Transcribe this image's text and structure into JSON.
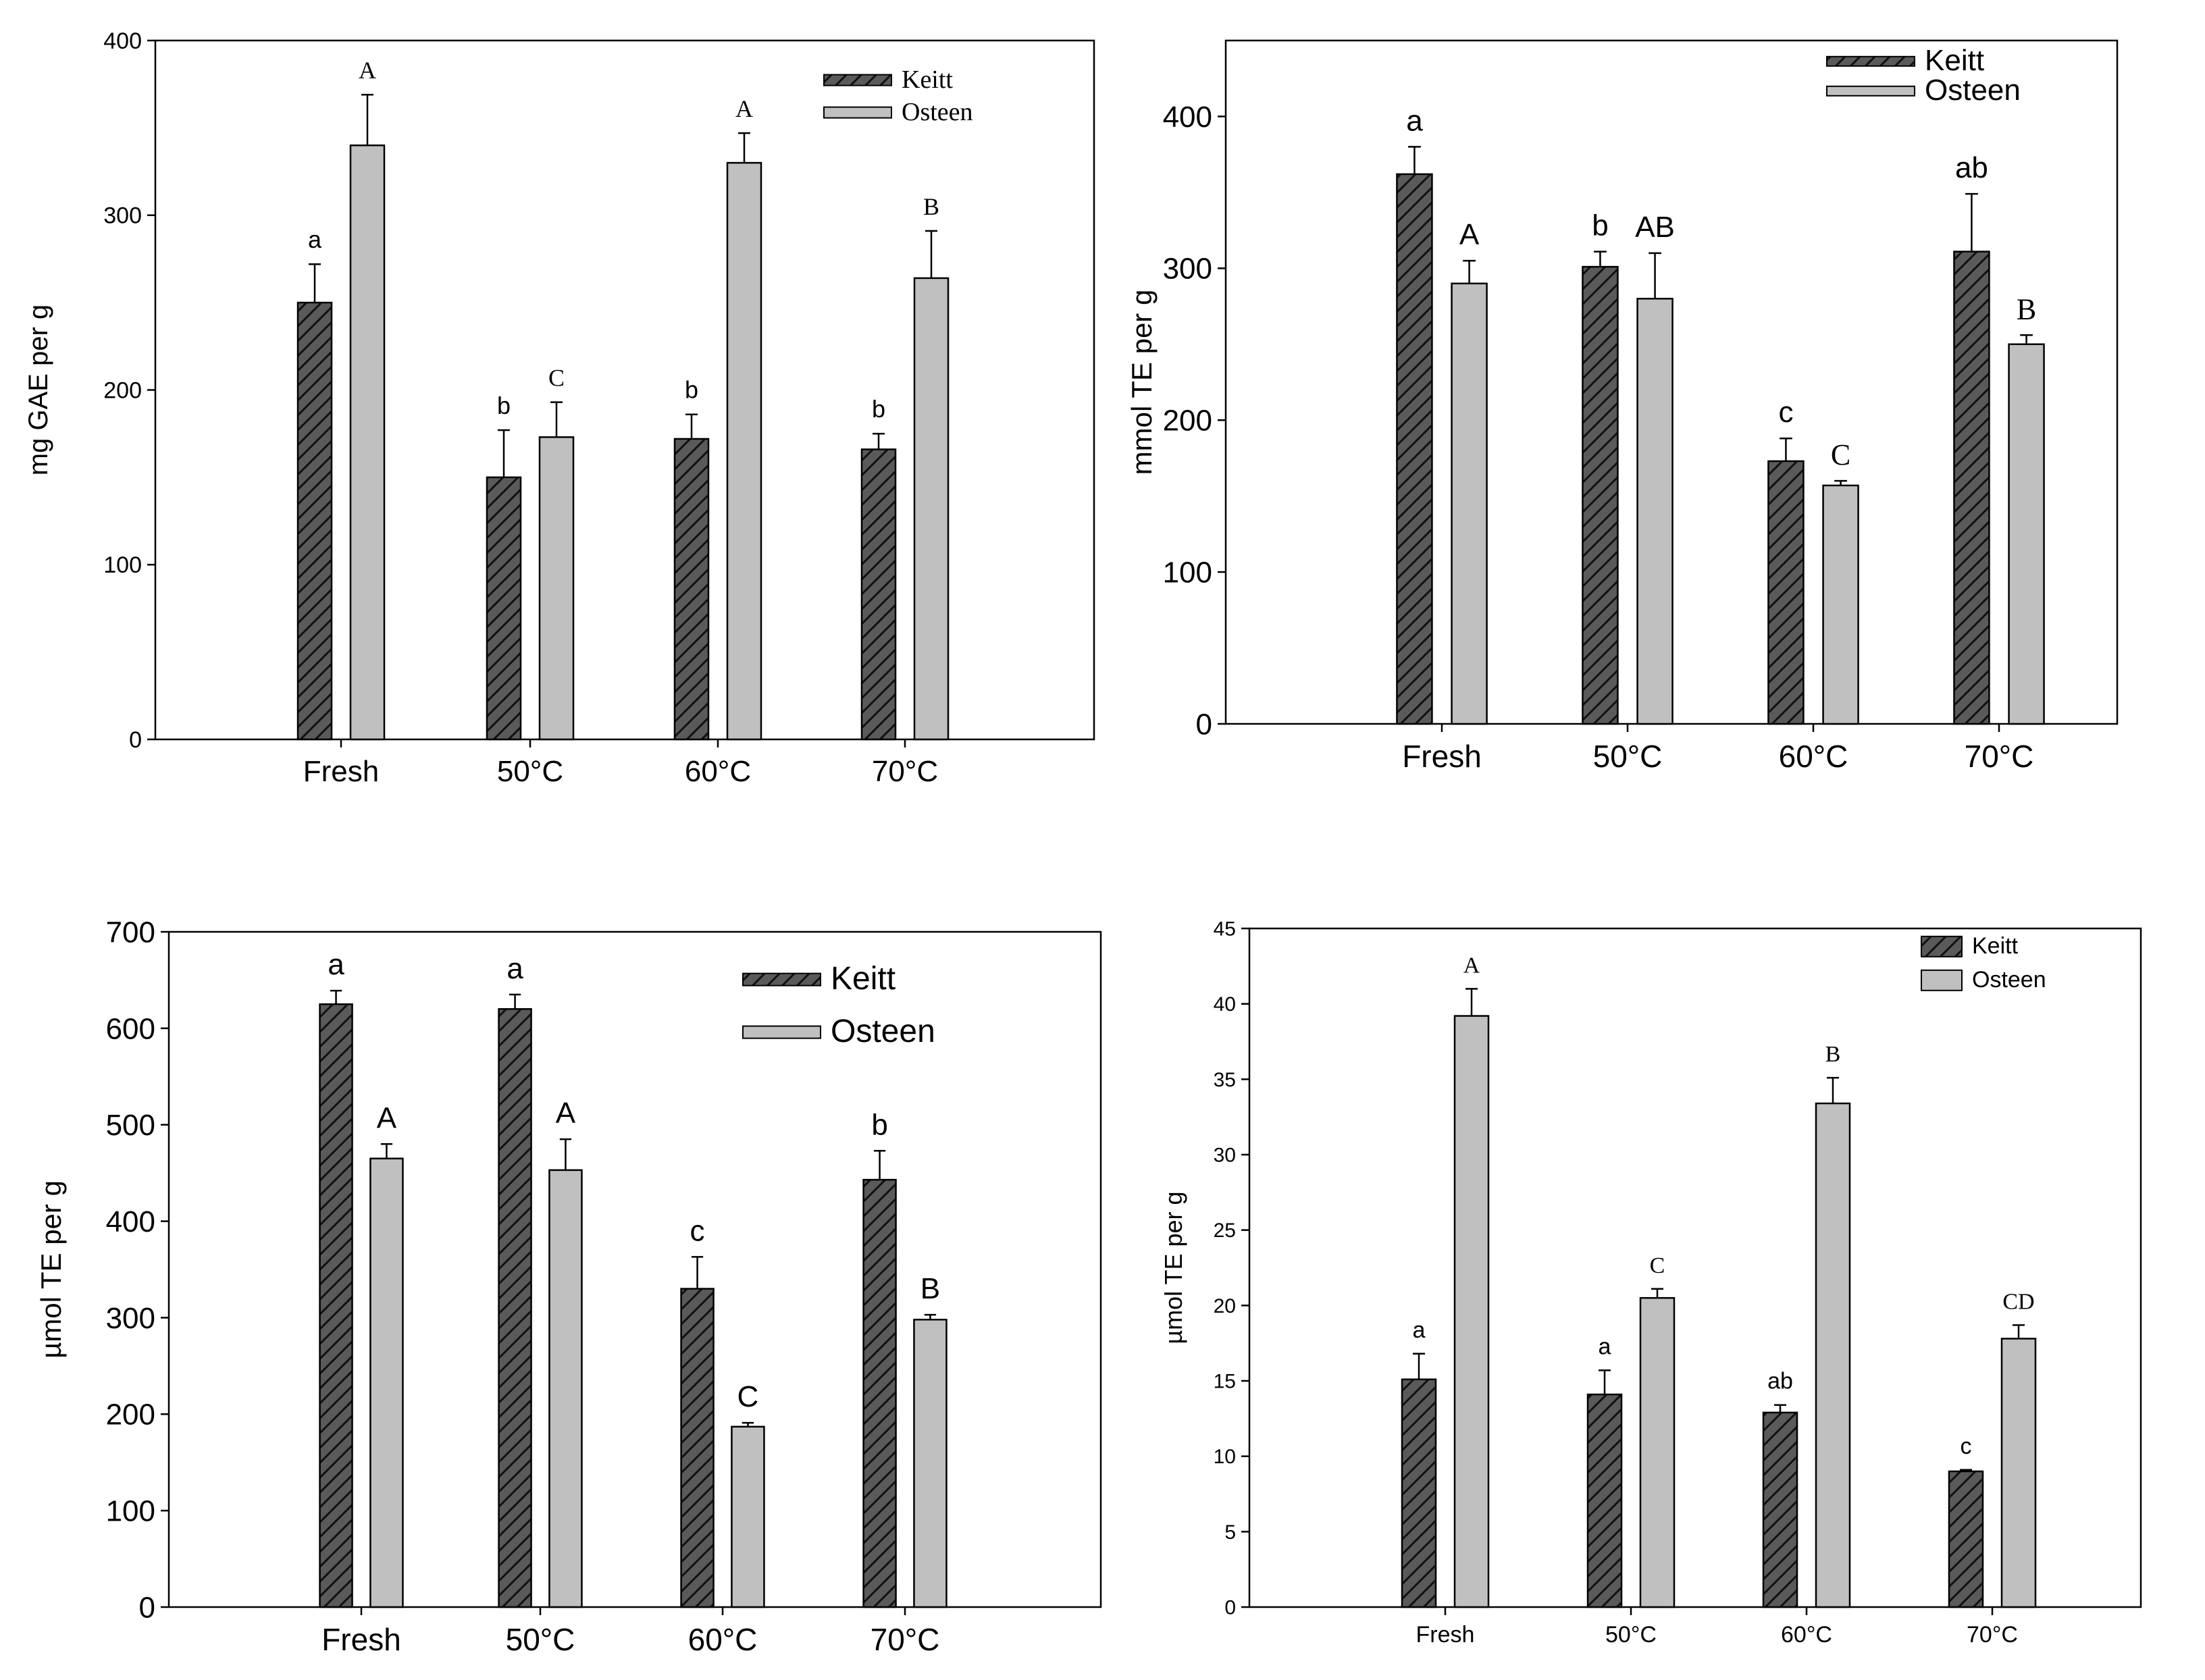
{
  "colors": {
    "keitt_fill": "#5a5a5a",
    "osteen_fill": "#c0c0c0",
    "axis": "#000000"
  },
  "chart_data": [
    {
      "type": "bar",
      "categories": [
        "Fresh",
        "50°C",
        "60°C",
        "70°C"
      ],
      "ylabel": "mg GAE per g",
      "ylim": [
        0,
        400
      ],
      "yticks": [
        0,
        100,
        200,
        300,
        400
      ],
      "legend_position": "top-right",
      "series": [
        {
          "name": "Keitt",
          "values": [
            250,
            150,
            172,
            166
          ],
          "errors": [
            22,
            27,
            14,
            9
          ],
          "letters": [
            "a",
            "b",
            "b",
            "b"
          ]
        },
        {
          "name": "Osteen",
          "values": [
            340,
            173,
            330,
            264
          ],
          "errors": [
            29,
            20,
            17,
            27
          ],
          "letters": [
            "A",
            "C",
            "A",
            "B"
          ]
        }
      ]
    },
    {
      "type": "bar",
      "categories": [
        "Fresh",
        "50°C",
        "60°C",
        "70°C"
      ],
      "ylabel": "mmol TE per g",
      "ylim": [
        0,
        450
      ],
      "yticks": [
        0,
        100,
        200,
        300,
        400
      ],
      "legend_position": "top-right",
      "series": [
        {
          "name": "Keitt",
          "values": [
            362,
            301,
            173,
            311
          ],
          "errors": [
            18,
            10,
            15,
            38
          ],
          "letters": [
            "a",
            "b",
            "c",
            "ab"
          ]
        },
        {
          "name": "Osteen",
          "values": [
            290,
            280,
            157,
            250
          ],
          "errors": [
            15,
            30,
            3,
            6
          ],
          "letters": [
            "A",
            "AB",
            "C",
            "B"
          ]
        }
      ]
    },
    {
      "type": "bar",
      "categories": [
        "Fresh",
        "50°C",
        "60°C",
        "70°C"
      ],
      "ylabel": "µmol TE per g",
      "ylim": [
        0,
        700
      ],
      "yticks": [
        0,
        100,
        200,
        300,
        400,
        500,
        600,
        700
      ],
      "legend_position": "top-right",
      "series": [
        {
          "name": "Keitt",
          "values": [
            625,
            620,
            330,
            443
          ],
          "errors": [
            14,
            15,
            33,
            30
          ],
          "letters": [
            "a",
            "a",
            "c",
            "b"
          ]
        },
        {
          "name": "Osteen",
          "values": [
            465,
            453,
            187,
            298
          ],
          "errors": [
            15,
            32,
            4,
            5
          ],
          "letters": [
            "A",
            "A",
            "C",
            "B"
          ]
        }
      ]
    },
    {
      "type": "bar",
      "categories": [
        "Fresh",
        "50°C",
        "60°C",
        "70°C"
      ],
      "ylabel": "µmol TE per g",
      "ylim": [
        0,
        45
      ],
      "yticks": [
        0,
        5,
        10,
        15,
        20,
        25,
        30,
        35,
        40,
        45
      ],
      "legend_position": "top-right",
      "series": [
        {
          "name": "Keitt",
          "values": [
            15.1,
            14.1,
            12.9,
            9.0
          ],
          "errors": [
            1.7,
            1.6,
            0.5,
            0.1
          ],
          "letters": [
            "a",
            "a",
            "ab",
            "c"
          ]
        },
        {
          "name": "Osteen",
          "values": [
            39.2,
            20.5,
            33.4,
            17.8
          ],
          "errors": [
            1.8,
            0.6,
            1.7,
            0.9
          ],
          "letters": [
            "A",
            "C",
            "B",
            "CD"
          ]
        }
      ]
    }
  ]
}
